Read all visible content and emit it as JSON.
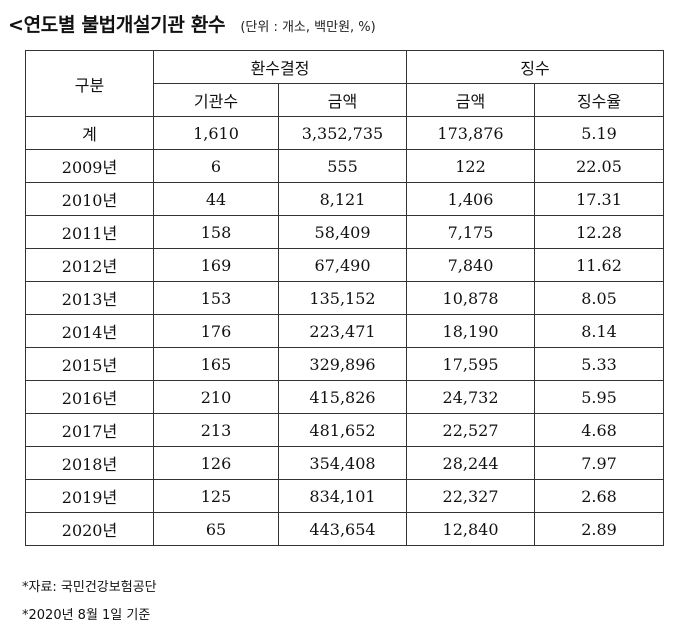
{
  "title": "<연도별 불법개설기관 환수",
  "unit_note": "(단위 : 개소, 백만원, %)",
  "table": {
    "header_top": {
      "category": "구분",
      "group1": "환수결정",
      "group2": "징수"
    },
    "header_sub": [
      "기관수",
      "금액",
      "금액",
      "징수율"
    ],
    "rows": [
      [
        "계",
        "1,610",
        "3,352,735",
        "173,876",
        "5.19"
      ],
      [
        "2009년",
        "6",
        "555",
        "122",
        "22.05"
      ],
      [
        "2010년",
        "44",
        "8,121",
        "1,406",
        "17.31"
      ],
      [
        "2011년",
        "158",
        "58,409",
        "7,175",
        "12.28"
      ],
      [
        "2012년",
        "169",
        "67,490",
        "7,840",
        "11.62"
      ],
      [
        "2013년",
        "153",
        "135,152",
        "10,878",
        "8.05"
      ],
      [
        "2014년",
        "176",
        "223,471",
        "18,190",
        "8.14"
      ],
      [
        "2015년",
        "165",
        "329,896",
        "17,595",
        "5.33"
      ],
      [
        "2016년",
        "210",
        "415,826",
        "24,732",
        "5.95"
      ],
      [
        "2017년",
        "213",
        "481,652",
        "22,527",
        "4.68"
      ],
      [
        "2018년",
        "126",
        "354,408",
        "28,244",
        "7.97"
      ],
      [
        "2019년",
        "125",
        "834,101",
        "22,327",
        "2.68"
      ],
      [
        "2020년",
        "65",
        "443,654",
        "12,840",
        "2.89"
      ]
    ]
  },
  "footnotes": [
    "*자료: 국민건강보험공단",
    "*2020년 8월 1일 기준"
  ]
}
